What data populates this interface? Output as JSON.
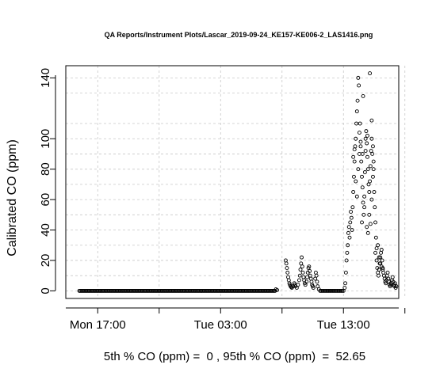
{
  "chart_data": {
    "type": "scatter",
    "title": "QA Reports/Instrument Plots/Lascar_2019-09-24_KE157-KE006-2_LAS1416.png",
    "ylabel": "Calibrated CO (ppm)",
    "xlabel": "",
    "ylim": [
      -5,
      148
    ],
    "xlim": [
      -1.6,
      25.5
    ],
    "x_unit": "hours from Mon 16:00",
    "grid": true,
    "legend": "none",
    "y_ticks": [
      0,
      20,
      40,
      60,
      80,
      100,
      140
    ],
    "y_grid": [
      0,
      10,
      20,
      30,
      40,
      50,
      60,
      70,
      80,
      90,
      100,
      110,
      130,
      140
    ],
    "x_ticks": [
      {
        "value": 1,
        "label": "Mon 17:00"
      },
      {
        "value": 11,
        "label": "Tue 03:00"
      },
      {
        "value": 21,
        "label": "Tue 13:00"
      }
    ],
    "x_grid": [
      1,
      6,
      11,
      16,
      21,
      26
    ],
    "baseline": {
      "x_start": -0.5,
      "x_end": 15.5,
      "y": 0
    },
    "points": [
      [
        15.5,
        1
      ],
      [
        15.6,
        0.5
      ],
      [
        16.3,
        20
      ],
      [
        16.35,
        18
      ],
      [
        16.4,
        15
      ],
      [
        16.45,
        12
      ],
      [
        16.5,
        9
      ],
      [
        16.55,
        7
      ],
      [
        16.6,
        5
      ],
      [
        16.65,
        4
      ],
      [
        16.7,
        3
      ],
      [
        16.75,
        2.5
      ],
      [
        16.8,
        2
      ],
      [
        16.9,
        3
      ],
      [
        17.0,
        5
      ],
      [
        17.05,
        4
      ],
      [
        17.1,
        3
      ],
      [
        17.2,
        2
      ],
      [
        17.3,
        4
      ],
      [
        17.4,
        7
      ],
      [
        17.45,
        10
      ],
      [
        17.5,
        14
      ],
      [
        17.55,
        18
      ],
      [
        17.6,
        22
      ],
      [
        17.65,
        16
      ],
      [
        17.7,
        12
      ],
      [
        17.75,
        9
      ],
      [
        17.8,
        7
      ],
      [
        17.85,
        5
      ],
      [
        17.9,
        4
      ],
      [
        18.0,
        6
      ],
      [
        18.05,
        9
      ],
      [
        18.1,
        12
      ],
      [
        18.15,
        15
      ],
      [
        18.2,
        16
      ],
      [
        18.25,
        13
      ],
      [
        18.3,
        10
      ],
      [
        18.35,
        8
      ],
      [
        18.4,
        6
      ],
      [
        18.45,
        4
      ],
      [
        18.5,
        3
      ],
      [
        18.55,
        2
      ],
      [
        18.7,
        8
      ],
      [
        18.75,
        12
      ],
      [
        18.8,
        10
      ],
      [
        18.85,
        6
      ],
      [
        18.9,
        3
      ],
      [
        19.0,
        1
      ],
      [
        19.1,
        0
      ],
      [
        19.2,
        0
      ],
      [
        19.3,
        0
      ],
      [
        19.4,
        0
      ],
      [
        19.5,
        0
      ],
      [
        19.6,
        0
      ],
      [
        19.7,
        0
      ],
      [
        19.8,
        0
      ],
      [
        19.9,
        0
      ],
      [
        20.0,
        0
      ],
      [
        20.1,
        0
      ],
      [
        20.2,
        0
      ],
      [
        20.3,
        0
      ],
      [
        20.4,
        0
      ],
      [
        20.5,
        0
      ],
      [
        20.6,
        0
      ],
      [
        20.7,
        0
      ],
      [
        20.8,
        0
      ],
      [
        20.9,
        0
      ],
      [
        21.0,
        0
      ],
      [
        21.1,
        2
      ],
      [
        21.15,
        5
      ],
      [
        21.2,
        12
      ],
      [
        21.25,
        20
      ],
      [
        21.3,
        25
      ],
      [
        21.35,
        30
      ],
      [
        21.4,
        38
      ],
      [
        21.45,
        42
      ],
      [
        21.5,
        35
      ],
      [
        21.55,
        45
      ],
      [
        21.6,
        52
      ],
      [
        21.65,
        48
      ],
      [
        21.7,
        40
      ],
      [
        21.75,
        55
      ],
      [
        21.8,
        65
      ],
      [
        21.85,
        75
      ],
      [
        21.9,
        85
      ],
      [
        21.95,
        95
      ],
      [
        22.0,
        100
      ],
      [
        22.05,
        110
      ],
      [
        22.1,
        118
      ],
      [
        22.15,
        125
      ],
      [
        22.2,
        140
      ],
      [
        22.25,
        135
      ],
      [
        21.8,
        88
      ],
      [
        21.9,
        93
      ],
      [
        22.0,
        72
      ],
      [
        22.1,
        62
      ],
      [
        22.2,
        80
      ],
      [
        22.3,
        90
      ],
      [
        22.35,
        110
      ],
      [
        22.4,
        98
      ],
      [
        22.45,
        85
      ],
      [
        22.5,
        75
      ],
      [
        22.55,
        68
      ],
      [
        22.6,
        58
      ],
      [
        22.65,
        50
      ],
      [
        22.7,
        62
      ],
      [
        22.75,
        78
      ],
      [
        22.8,
        92
      ],
      [
        22.85,
        105
      ],
      [
        22.9,
        97
      ],
      [
        22.95,
        88
      ],
      [
        23.0,
        80
      ],
      [
        23.05,
        70
      ],
      [
        23.1,
        65
      ],
      [
        23.15,
        72
      ],
      [
        23.2,
        82
      ],
      [
        23.25,
        92
      ],
      [
        23.3,
        100
      ],
      [
        23.35,
        90
      ],
      [
        22.5,
        45
      ],
      [
        22.7,
        55
      ],
      [
        22.9,
        42
      ],
      [
        23.0,
        38
      ],
      [
        23.1,
        50
      ],
      [
        23.2,
        44
      ],
      [
        23.3,
        60
      ],
      [
        23.4,
        75
      ],
      [
        23.45,
        85
      ],
      [
        23.5,
        65
      ],
      [
        23.55,
        55
      ],
      [
        23.6,
        45
      ],
      [
        23.65,
        35
      ],
      [
        22.6,
        128
      ],
      [
        23.15,
        143
      ],
      [
        22.3,
        104
      ],
      [
        22.8,
        100
      ],
      [
        23.3,
        112
      ],
      [
        22.4,
        95
      ],
      [
        22.55,
        90
      ],
      [
        22.95,
        102
      ],
      [
        23.4,
        95
      ],
      [
        23.45,
        80
      ],
      [
        23.7,
        20
      ],
      [
        23.75,
        15
      ],
      [
        23.8,
        12
      ],
      [
        23.85,
        10
      ],
      [
        23.9,
        14
      ],
      [
        23.95,
        18
      ],
      [
        24.0,
        22
      ],
      [
        24.05,
        25
      ],
      [
        24.1,
        27
      ],
      [
        24.15,
        20
      ],
      [
        24.2,
        15
      ],
      [
        24.25,
        12
      ],
      [
        24.3,
        10
      ],
      [
        24.35,
        8
      ],
      [
        23.6,
        25
      ],
      [
        23.7,
        28
      ],
      [
        23.8,
        30
      ],
      [
        23.9,
        22
      ],
      [
        24.0,
        18
      ],
      [
        24.1,
        16
      ],
      [
        24.2,
        14
      ],
      [
        24.4,
        6
      ],
      [
        24.45,
        5
      ],
      [
        24.5,
        7
      ],
      [
        24.55,
        10
      ],
      [
        24.6,
        12
      ],
      [
        24.65,
        8
      ],
      [
        24.7,
        6
      ],
      [
        24.75,
        4
      ],
      [
        24.8,
        3
      ],
      [
        24.85,
        5
      ],
      [
        24.9,
        4
      ],
      [
        24.95,
        7
      ],
      [
        25.0,
        9
      ],
      [
        25.05,
        6
      ],
      [
        25.1,
        4
      ],
      [
        25.15,
        3
      ],
      [
        25.2,
        5
      ],
      [
        25.25,
        2
      ],
      [
        25.3,
        3
      ]
    ]
  },
  "footer": {
    "summary": "5th % CO (ppm) =  0 , 95th % CO (ppm)  =  52.65"
  }
}
